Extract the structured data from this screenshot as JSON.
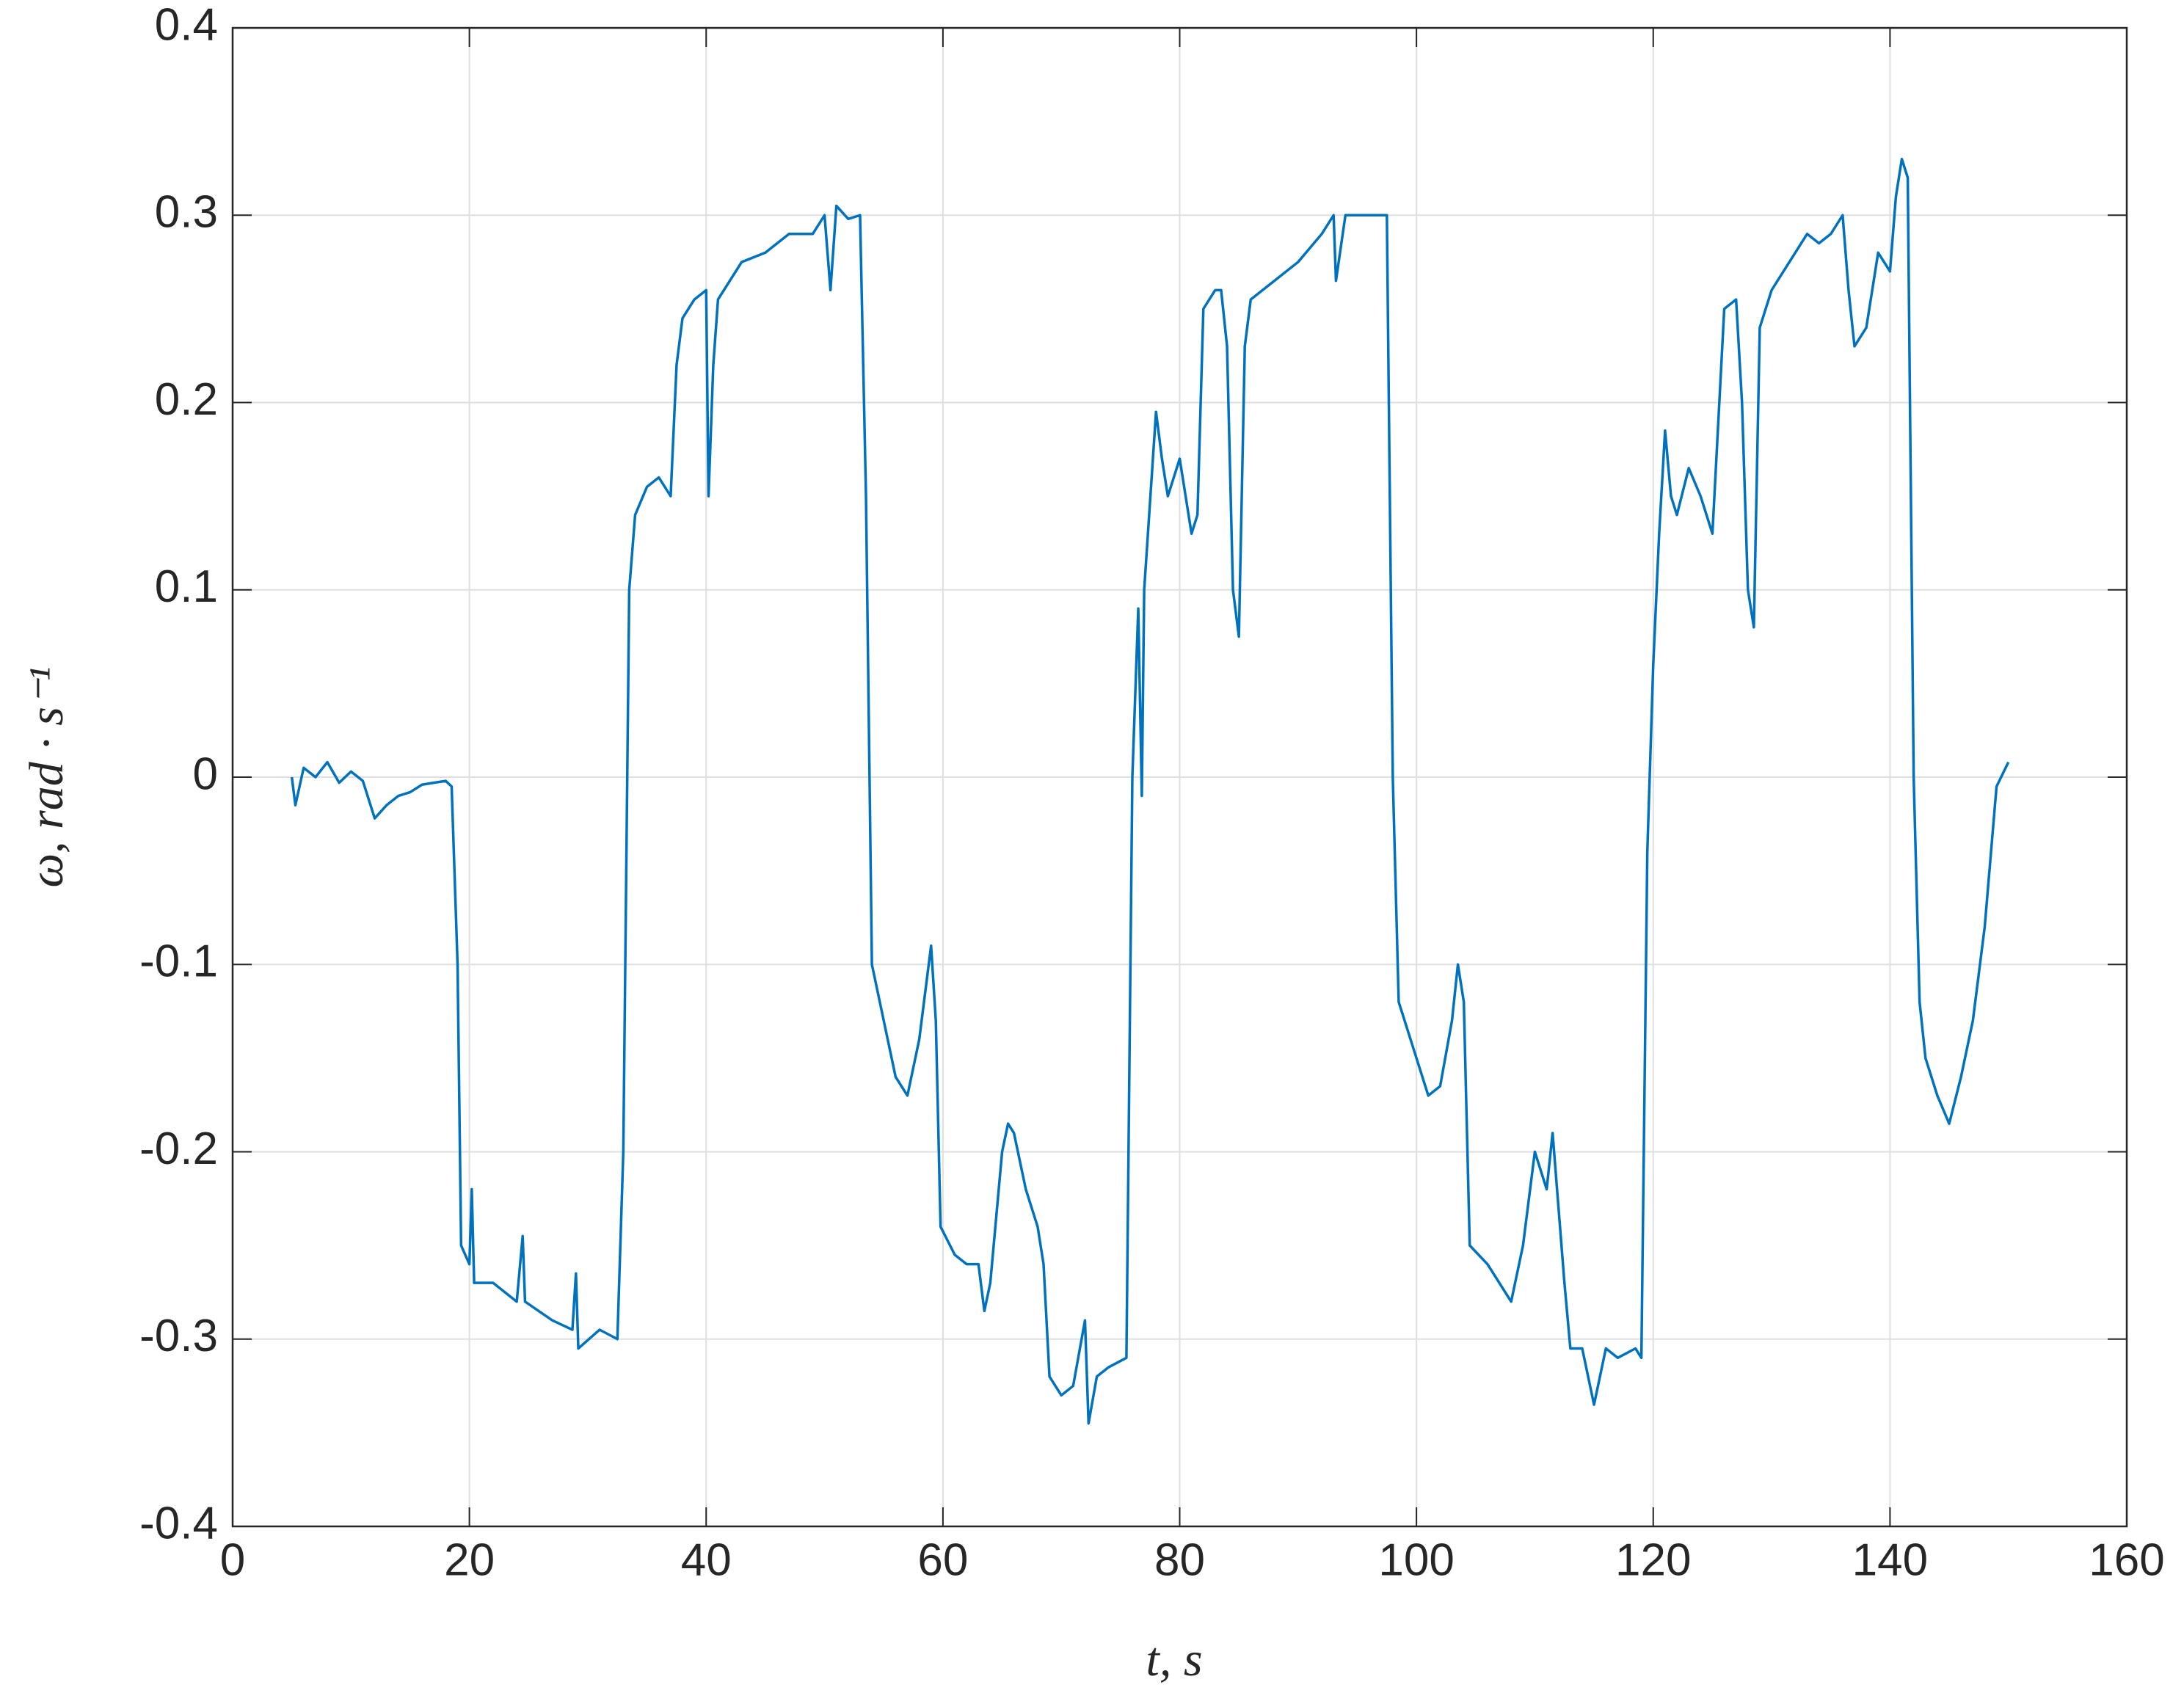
{
  "chart_data": {
    "type": "line",
    "xlabel": "t, s",
    "ylabel": "ω, rad · s⁻¹",
    "xlim": [
      0,
      160
    ],
    "ylim": [
      -0.4,
      0.4
    ],
    "xticks": [
      0,
      20,
      40,
      60,
      80,
      100,
      120,
      140,
      160
    ],
    "yticks": [
      -0.4,
      -0.3,
      -0.2,
      -0.1,
      0,
      0.1,
      0.2,
      0.3,
      0.4
    ],
    "grid": true,
    "x": [
      5,
      5.3,
      6,
      7,
      8,
      9,
      10,
      11,
      12,
      13,
      14,
      15,
      16,
      17,
      18,
      18.5,
      19,
      19.3,
      20,
      20.2,
      20.4,
      22,
      24,
      24.5,
      24.7,
      27,
      28.7,
      29,
      29.2,
      31,
      32.5,
      33,
      33.5,
      34,
      35,
      36,
      37,
      37.5,
      38,
      39,
      40,
      40.2,
      40.6,
      41,
      42,
      43,
      45,
      47,
      49,
      50,
      50.5,
      51,
      52,
      53,
      53.5,
      54,
      55,
      56,
      57,
      58,
      59,
      59.4,
      59.8,
      61,
      62,
      63,
      63.5,
      64,
      65,
      65.5,
      66,
      67,
      68,
      68.5,
      69,
      70,
      71,
      72,
      72.3,
      73,
      74,
      75.5,
      76,
      76.5,
      76.8,
      77,
      78,
      78.5,
      79,
      80,
      80.5,
      81,
      81.5,
      82,
      83,
      83.5,
      84,
      84.5,
      85,
      85.5,
      86,
      87,
      88,
      90,
      92,
      93,
      93.2,
      94,
      96,
      97.5,
      98,
      98.5,
      100,
      101,
      102,
      103,
      103.5,
      104,
      104.5,
      106,
      107,
      108,
      109,
      110,
      111,
      111.5,
      112,
      112.5,
      113,
      114,
      115,
      116,
      117,
      118.5,
      119,
      119.5,
      120,
      120.5,
      121,
      121.5,
      122,
      123,
      124,
      125,
      126,
      127,
      127.5,
      128,
      128.5,
      129,
      130,
      131,
      132,
      133,
      134,
      135,
      136,
      136.5,
      137,
      138,
      139,
      140,
      140.5,
      141,
      141.5,
      142,
      142.5,
      143,
      144,
      145,
      146,
      147,
      148,
      149,
      150
    ],
    "series": [
      {
        "name": "omega",
        "color": "#0072BD",
        "values": [
          0,
          -0.015,
          0.005,
          0,
          0.008,
          -0.003,
          0.003,
          -0.002,
          -0.022,
          -0.015,
          -0.01,
          -0.008,
          -0.004,
          -0.003,
          -0.002,
          -0.005,
          -0.1,
          -0.25,
          -0.26,
          -0.22,
          -0.27,
          -0.27,
          -0.28,
          -0.245,
          -0.28,
          -0.29,
          -0.295,
          -0.265,
          -0.305,
          -0.295,
          -0.3,
          -0.2,
          0.1,
          0.14,
          0.155,
          0.16,
          0.15,
          0.22,
          0.245,
          0.255,
          0.26,
          0.15,
          0.22,
          0.255,
          0.265,
          0.275,
          0.28,
          0.29,
          0.29,
          0.3,
          0.26,
          0.305,
          0.298,
          0.3,
          0.15,
          -0.1,
          -0.13,
          -0.16,
          -0.17,
          -0.14,
          -0.09,
          -0.13,
          -0.24,
          -0.255,
          -0.26,
          -0.26,
          -0.285,
          -0.27,
          -0.2,
          -0.185,
          -0.19,
          -0.22,
          -0.24,
          -0.26,
          -0.32,
          -0.33,
          -0.325,
          -0.29,
          -0.345,
          -0.32,
          -0.315,
          -0.31,
          0,
          0.09,
          -0.01,
          0.1,
          0.195,
          0.17,
          0.15,
          0.17,
          0.15,
          0.13,
          0.14,
          0.25,
          0.26,
          0.26,
          0.23,
          0.1,
          0.075,
          0.23,
          0.255,
          0.26,
          0.265,
          0.275,
          0.29,
          0.3,
          0.265,
          0.3,
          0.3,
          0.3,
          0,
          -0.12,
          -0.15,
          -0.17,
          -0.165,
          -0.13,
          -0.1,
          -0.12,
          -0.25,
          -0.26,
          -0.27,
          -0.28,
          -0.25,
          -0.2,
          -0.22,
          -0.19,
          -0.23,
          -0.27,
          -0.305,
          -0.305,
          -0.335,
          -0.305,
          -0.31,
          -0.305,
          -0.31,
          -0.04,
          0.06,
          0.13,
          0.185,
          0.15,
          0.14,
          0.165,
          0.15,
          0.13,
          0.25,
          0.255,
          0.2,
          0.1,
          0.08,
          0.24,
          0.26,
          0.27,
          0.28,
          0.29,
          0.285,
          0.29,
          0.3,
          0.26,
          0.23,
          0.24,
          0.28,
          0.27,
          0.31,
          0.33,
          0.32,
          0,
          -0.12,
          -0.15,
          -0.17,
          -0.185,
          -0.16,
          -0.13,
          -0.08,
          -0.005,
          0.008
        ]
      }
    ]
  }
}
